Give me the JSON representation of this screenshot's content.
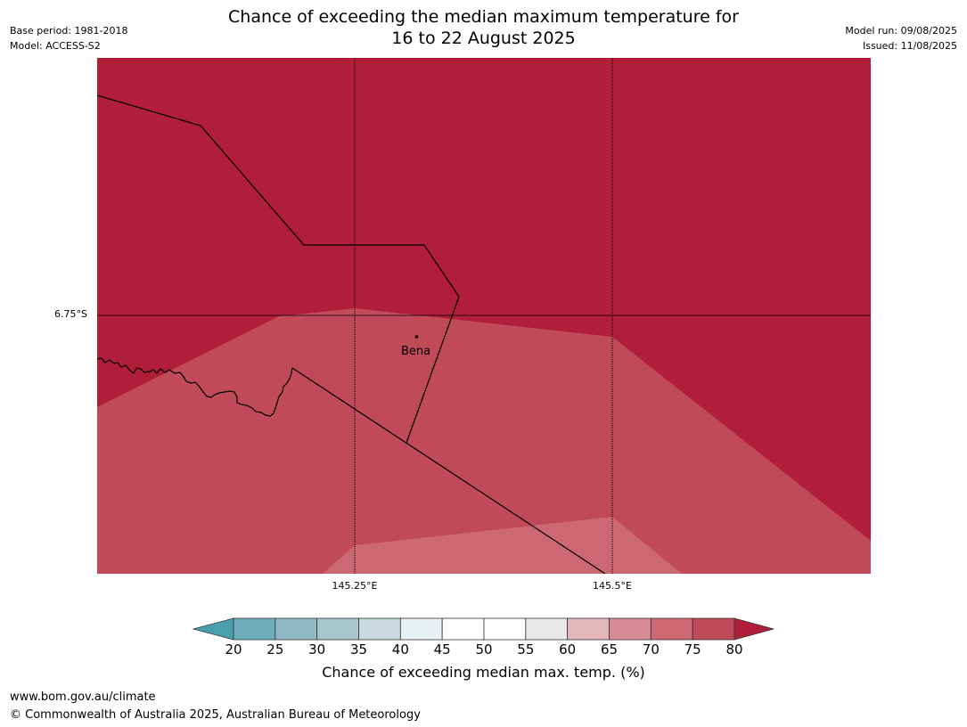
{
  "header": {
    "title_line1": "Chance of exceeding the median maximum temperature for",
    "title_line2": "16 to 22 August 2025",
    "base_period": "Base period: 1981-2018",
    "model": "Model: ACCESS-S2",
    "model_run": "Model run: 09/08/2025",
    "issued": "Issued: 11/08/2025"
  },
  "map": {
    "lat_label": "6.75°S",
    "lon_labels": [
      "145.25°E",
      "145.5°E"
    ],
    "place_label": "Bena",
    "colors": {
      "above_80": "#b01e3a",
      "band_75_80": "#c04a58",
      "band_70_75": "#cb6872"
    }
  },
  "colorbar": {
    "ticks": [
      "20",
      "25",
      "30",
      "35",
      "40",
      "45",
      "50",
      "55",
      "60",
      "65",
      "70",
      "75",
      "80"
    ],
    "colors": [
      "#6fadbb",
      "#8db8c4",
      "#a9c6cd",
      "#c8dadd",
      "#e9f1f3",
      "#ffffff",
      "#ffffff",
      "#e8e8e8",
      "#e3b7bc",
      "#d68c95",
      "#cb6872",
      "#c04a58"
    ],
    "under_color": "#4a9fae",
    "over_color": "#b01e3a",
    "label": "Chance of exceeding median max. temp. (%)"
  },
  "footer": {
    "url": "www.bom.gov.au/climate",
    "copyright": "© Commonwealth of Australia 2025, Australian Bureau of Meteorology"
  }
}
